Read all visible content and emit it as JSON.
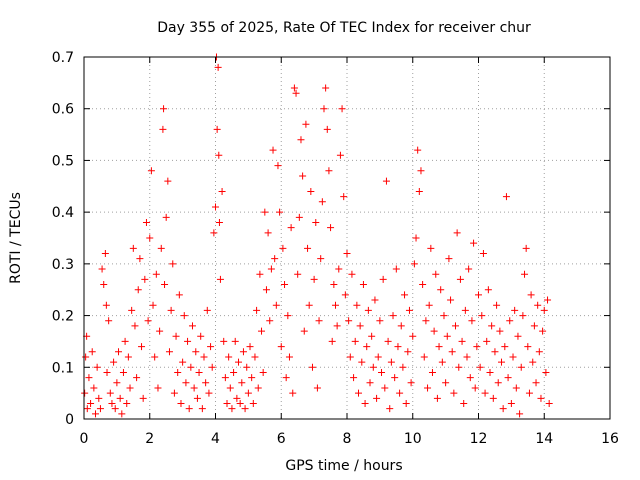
{
  "chart_data": {
    "type": "scatter",
    "title": "Day 355 of 2025, Rate Of TEC Index for receiver chur",
    "xlabel": "GPS time / hours",
    "ylabel": "ROTI / TECUs",
    "xlim": [
      0,
      16
    ],
    "ylim": [
      0,
      0.7
    ],
    "xticks": [
      0,
      2,
      4,
      6,
      8,
      10,
      12,
      14,
      16
    ],
    "xtick_labels": [
      "0",
      "2",
      "4",
      "6",
      "8",
      "10",
      "12",
      "14",
      "16"
    ],
    "yticks": [
      0,
      0.1,
      0.2,
      0.3,
      0.4,
      0.5,
      0.6,
      0.7
    ],
    "ytick_labels": [
      "0",
      "0.1",
      "0.2",
      "0.3",
      "0.4",
      "0.5",
      "0.6",
      "0.7"
    ],
    "grid": true,
    "marker": "plus",
    "color": "#ff0000",
    "series": [
      {
        "name": "ROTI",
        "points": [
          [
            0.02,
            0.05
          ],
          [
            0.05,
            0.12
          ],
          [
            0.08,
            0.16
          ],
          [
            0.1,
            0.02
          ],
          [
            0.15,
            0.08
          ],
          [
            0.2,
            0.03
          ],
          [
            0.25,
            0.13
          ],
          [
            0.3,
            0.06
          ],
          [
            0.35,
            0.01
          ],
          [
            0.4,
            0.1
          ],
          [
            0.45,
            0.04
          ],
          [
            0.5,
            0.02
          ],
          [
            0.55,
            0.29
          ],
          [
            0.6,
            0.26
          ],
          [
            0.65,
            0.32
          ],
          [
            0.68,
            0.22
          ],
          [
            0.7,
            0.09
          ],
          [
            0.75,
            0.19
          ],
          [
            0.8,
            0.05
          ],
          [
            0.85,
            0.03
          ],
          [
            0.9,
            0.11
          ],
          [
            0.95,
            0.02
          ],
          [
            1.0,
            0.07
          ],
          [
            1.05,
            0.13
          ],
          [
            1.1,
            0.04
          ],
          [
            1.15,
            0.01
          ],
          [
            1.2,
            0.09
          ],
          [
            1.25,
            0.15
          ],
          [
            1.3,
            0.03
          ],
          [
            1.35,
            0.12
          ],
          [
            1.4,
            0.06
          ],
          [
            1.45,
            0.21
          ],
          [
            1.5,
            0.33
          ],
          [
            1.55,
            0.18
          ],
          [
            1.6,
            0.08
          ],
          [
            1.65,
            0.25
          ],
          [
            1.7,
            0.31
          ],
          [
            1.75,
            0.14
          ],
          [
            1.8,
            0.04
          ],
          [
            1.85,
            0.27
          ],
          [
            1.9,
            0.38
          ],
          [
            1.95,
            0.19
          ],
          [
            2.0,
            0.35
          ],
          [
            2.05,
            0.48
          ],
          [
            2.1,
            0.22
          ],
          [
            2.15,
            0.12
          ],
          [
            2.2,
            0.28
          ],
          [
            2.25,
            0.06
          ],
          [
            2.3,
            0.17
          ],
          [
            2.35,
            0.33
          ],
          [
            2.4,
            0.56
          ],
          [
            2.42,
            0.6
          ],
          [
            2.45,
            0.26
          ],
          [
            2.5,
            0.39
          ],
          [
            2.55,
            0.46
          ],
          [
            2.6,
            0.13
          ],
          [
            2.65,
            0.21
          ],
          [
            2.7,
            0.3
          ],
          [
            2.75,
            0.05
          ],
          [
            2.8,
            0.16
          ],
          [
            2.85,
            0.09
          ],
          [
            2.9,
            0.24
          ],
          [
            2.95,
            0.03
          ],
          [
            3.0,
            0.11
          ],
          [
            3.05,
            0.2
          ],
          [
            3.1,
            0.07
          ],
          [
            3.15,
            0.15
          ],
          [
            3.2,
            0.02
          ],
          [
            3.25,
            0.1
          ],
          [
            3.3,
            0.18
          ],
          [
            3.35,
            0.06
          ],
          [
            3.4,
            0.13
          ],
          [
            3.45,
            0.04
          ],
          [
            3.5,
            0.09
          ],
          [
            3.55,
            0.16
          ],
          [
            3.6,
            0.02
          ],
          [
            3.65,
            0.12
          ],
          [
            3.7,
            0.07
          ],
          [
            3.75,
            0.21
          ],
          [
            3.8,
            0.05
          ],
          [
            3.85,
            0.14
          ],
          [
            3.9,
            0.1
          ],
          [
            3.95,
            0.36
          ],
          [
            4.0,
            0.41
          ],
          [
            4.03,
            0.7
          ],
          [
            4.05,
            0.56
          ],
          [
            4.08,
            0.68
          ],
          [
            4.1,
            0.51
          ],
          [
            4.12,
            0.38
          ],
          [
            4.15,
            0.27
          ],
          [
            4.2,
            0.44
          ],
          [
            4.25,
            0.15
          ],
          [
            4.3,
            0.08
          ],
          [
            4.35,
            0.03
          ],
          [
            4.4,
            0.12
          ],
          [
            4.45,
            0.06
          ],
          [
            4.5,
            0.02
          ],
          [
            4.55,
            0.09
          ],
          [
            4.6,
            0.15
          ],
          [
            4.65,
            0.04
          ],
          [
            4.7,
            0.11
          ],
          [
            4.75,
            0.03
          ],
          [
            4.8,
            0.07
          ],
          [
            4.85,
            0.13
          ],
          [
            4.9,
            0.02
          ],
          [
            4.95,
            0.1
          ],
          [
            5.0,
            0.05
          ],
          [
            5.05,
            0.14
          ],
          [
            5.1,
            0.08
          ],
          [
            5.15,
            0.03
          ],
          [
            5.2,
            0.12
          ],
          [
            5.25,
            0.21
          ],
          [
            5.3,
            0.06
          ],
          [
            5.35,
            0.28
          ],
          [
            5.4,
            0.17
          ],
          [
            5.45,
            0.09
          ],
          [
            5.5,
            0.4
          ],
          [
            5.55,
            0.25
          ],
          [
            5.6,
            0.36
          ],
          [
            5.65,
            0.19
          ],
          [
            5.7,
            0.29
          ],
          [
            5.75,
            0.52
          ],
          [
            5.8,
            0.31
          ],
          [
            5.85,
            0.22
          ],
          [
            5.9,
            0.49
          ],
          [
            5.95,
            0.4
          ],
          [
            6.0,
            0.14
          ],
          [
            6.05,
            0.33
          ],
          [
            6.1,
            0.26
          ],
          [
            6.15,
            0.08
          ],
          [
            6.2,
            0.2
          ],
          [
            6.25,
            0.12
          ],
          [
            6.3,
            0.37
          ],
          [
            6.35,
            0.05
          ],
          [
            6.4,
            0.64
          ],
          [
            6.45,
            0.63
          ],
          [
            6.5,
            0.28
          ],
          [
            6.55,
            0.39
          ],
          [
            6.6,
            0.54
          ],
          [
            6.65,
            0.47
          ],
          [
            6.7,
            0.17
          ],
          [
            6.75,
            0.57
          ],
          [
            6.8,
            0.33
          ],
          [
            6.85,
            0.22
          ],
          [
            6.9,
            0.44
          ],
          [
            6.95,
            0.1
          ],
          [
            7.0,
            0.27
          ],
          [
            7.05,
            0.38
          ],
          [
            7.1,
            0.06
          ],
          [
            7.15,
            0.19
          ],
          [
            7.2,
            0.31
          ],
          [
            7.25,
            0.42
          ],
          [
            7.3,
            0.6
          ],
          [
            7.35,
            0.64
          ],
          [
            7.4,
            0.56
          ],
          [
            7.45,
            0.48
          ],
          [
            7.5,
            0.37
          ],
          [
            7.55,
            0.15
          ],
          [
            7.6,
            0.26
          ],
          [
            7.65,
            0.22
          ],
          [
            7.7,
            0.18
          ],
          [
            7.75,
            0.29
          ],
          [
            7.8,
            0.51
          ],
          [
            7.85,
            0.6
          ],
          [
            7.9,
            0.43
          ],
          [
            7.95,
            0.24
          ],
          [
            8.0,
            0.32
          ],
          [
            8.05,
            0.19
          ],
          [
            8.1,
            0.12
          ],
          [
            8.15,
            0.28
          ],
          [
            8.2,
            0.08
          ],
          [
            8.25,
            0.15
          ],
          [
            8.3,
            0.22
          ],
          [
            8.35,
            0.05
          ],
          [
            8.4,
            0.18
          ],
          [
            8.45,
            0.11
          ],
          [
            8.5,
            0.26
          ],
          [
            8.55,
            0.03
          ],
          [
            8.6,
            0.14
          ],
          [
            8.65,
            0.21
          ],
          [
            8.7,
            0.07
          ],
          [
            8.75,
            0.16
          ],
          [
            8.8,
            0.1
          ],
          [
            8.85,
            0.23
          ],
          [
            8.9,
            0.04
          ],
          [
            8.95,
            0.12
          ],
          [
            9.0,
            0.19
          ],
          [
            9.05,
            0.09
          ],
          [
            9.1,
            0.27
          ],
          [
            9.15,
            0.06
          ],
          [
            9.2,
            0.46
          ],
          [
            9.25,
            0.15
          ],
          [
            9.3,
            0.02
          ],
          [
            9.35,
            0.11
          ],
          [
            9.4,
            0.2
          ],
          [
            9.45,
            0.08
          ],
          [
            9.5,
            0.29
          ],
          [
            9.55,
            0.14
          ],
          [
            9.6,
            0.05
          ],
          [
            9.65,
            0.18
          ],
          [
            9.7,
            0.1
          ],
          [
            9.75,
            0.24
          ],
          [
            9.8,
            0.03
          ],
          [
            9.85,
            0.13
          ],
          [
            9.9,
            0.21
          ],
          [
            9.95,
            0.07
          ],
          [
            10.0,
            0.16
          ],
          [
            10.05,
            0.3
          ],
          [
            10.1,
            0.35
          ],
          [
            10.15,
            0.52
          ],
          [
            10.2,
            0.44
          ],
          [
            10.25,
            0.48
          ],
          [
            10.3,
            0.26
          ],
          [
            10.35,
            0.12
          ],
          [
            10.4,
            0.19
          ],
          [
            10.45,
            0.06
          ],
          [
            10.5,
            0.22
          ],
          [
            10.55,
            0.33
          ],
          [
            10.6,
            0.09
          ],
          [
            10.65,
            0.17
          ],
          [
            10.7,
            0.28
          ],
          [
            10.75,
            0.04
          ],
          [
            10.8,
            0.14
          ],
          [
            10.85,
            0.25
          ],
          [
            10.9,
            0.11
          ],
          [
            10.95,
            0.2
          ],
          [
            11.0,
            0.07
          ],
          [
            11.05,
            0.16
          ],
          [
            11.1,
            0.31
          ],
          [
            11.15,
            0.23
          ],
          [
            11.2,
            0.13
          ],
          [
            11.25,
            0.05
          ],
          [
            11.3,
            0.18
          ],
          [
            11.35,
            0.36
          ],
          [
            11.4,
            0.1
          ],
          [
            11.45,
            0.27
          ],
          [
            11.5,
            0.15
          ],
          [
            11.55,
            0.03
          ],
          [
            11.6,
            0.21
          ],
          [
            11.65,
            0.12
          ],
          [
            11.7,
            0.29
          ],
          [
            11.75,
            0.08
          ],
          [
            11.8,
            0.19
          ],
          [
            11.85,
            0.34
          ],
          [
            11.9,
            0.06
          ],
          [
            11.95,
            0.14
          ],
          [
            12.0,
            0.24
          ],
          [
            12.05,
            0.1
          ],
          [
            12.1,
            0.2
          ],
          [
            12.15,
            0.32
          ],
          [
            12.2,
            0.05
          ],
          [
            12.25,
            0.15
          ],
          [
            12.3,
            0.25
          ],
          [
            12.35,
            0.09
          ],
          [
            12.4,
            0.18
          ],
          [
            12.45,
            0.04
          ],
          [
            12.5,
            0.13
          ],
          [
            12.55,
            0.22
          ],
          [
            12.6,
            0.07
          ],
          [
            12.65,
            0.17
          ],
          [
            12.7,
            0.11
          ],
          [
            12.75,
            0.02
          ],
          [
            12.8,
            0.14
          ],
          [
            12.85,
            0.43
          ],
          [
            12.9,
            0.08
          ],
          [
            12.95,
            0.19
          ],
          [
            13.0,
            0.03
          ],
          [
            13.05,
            0.12
          ],
          [
            13.1,
            0.21
          ],
          [
            13.15,
            0.06
          ],
          [
            13.2,
            0.16
          ],
          [
            13.25,
            0.01
          ],
          [
            13.3,
            0.1
          ],
          [
            13.35,
            0.2
          ],
          [
            13.4,
            0.28
          ],
          [
            13.45,
            0.33
          ],
          [
            13.5,
            0.14
          ],
          [
            13.55,
            0.05
          ],
          [
            13.6,
            0.24
          ],
          [
            13.65,
            0.11
          ],
          [
            13.7,
            0.18
          ],
          [
            13.75,
            0.07
          ],
          [
            13.8,
            0.22
          ],
          [
            13.85,
            0.13
          ],
          [
            13.9,
            0.04
          ],
          [
            13.95,
            0.17
          ],
          [
            14.0,
            0.21
          ],
          [
            14.05,
            0.09
          ],
          [
            14.1,
            0.23
          ],
          [
            14.15,
            0.03
          ]
        ]
      }
    ]
  }
}
